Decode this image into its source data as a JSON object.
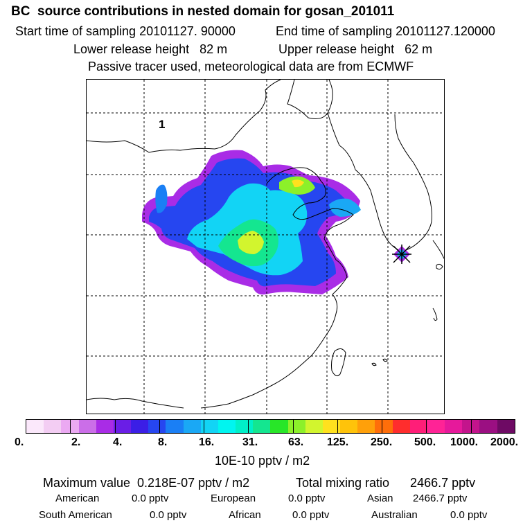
{
  "header": {
    "title": "BC  source contributions in nested domain for gosan_201011",
    "start_time": "Start time of sampling 20101127. 90000",
    "end_time": "End time of sampling 20101127.120000",
    "lower_release": "Lower release height   82 m",
    "upper_release": "Upper release height   62 m",
    "tracer_note": "Passive tracer used, meteorological data are from ECMWF"
  },
  "map": {
    "panel_label": "1",
    "receptor_marker": "receptor-star-icon",
    "colors": {
      "coast": "#000000",
      "grid": "#000000"
    }
  },
  "colorbar": {
    "colors": [
      "#fbe8fb",
      "#f3cdf3",
      "#eba9f2",
      "#cb6ee8",
      "#a92ce6",
      "#6a1ee6",
      "#3b1ee6",
      "#2646f0",
      "#1a7ff5",
      "#1aa8f5",
      "#12d4f5",
      "#00f5f0",
      "#00f0c8",
      "#14e690",
      "#28e628",
      "#8cf02a",
      "#d2f52e",
      "#ffe11e",
      "#ffc30a",
      "#ffa00a",
      "#ff6e0a",
      "#ff2d2d",
      "#ff1e78",
      "#ff2396",
      "#e6199b",
      "#c3148c",
      "#9b0f82",
      "#6e0a64"
    ],
    "tick_labels": [
      "0.",
      "2.",
      "4.",
      "8.",
      "16.",
      "31.",
      "63.",
      "125.",
      "250.",
      "500.",
      "1000.",
      "2000."
    ],
    "units": "10E-10 pptv / m2"
  },
  "footer": {
    "maximum_value": "Maximum value  0.218E-07 pptv / m2",
    "total_mixing": "Total mixing ratio      2466.7 pptv",
    "american_label": "American",
    "american_value": "0.0 pptv",
    "european_label": "European",
    "european_value": "0.0 pptv",
    "asian_label": "Asian",
    "asian_value": "2466.7 pptv",
    "south_american_label": "South American",
    "south_american_value": "0.0 pptv",
    "african_label": "African",
    "african_value": "0.0 pptv",
    "australian_label": "Australian",
    "australian_value": "0.0 pptv"
  }
}
